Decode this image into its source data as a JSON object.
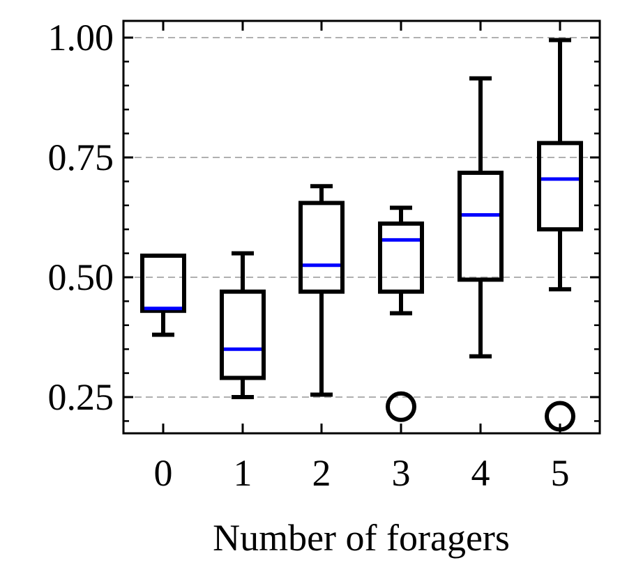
{
  "chart_data": {
    "type": "box",
    "title": "",
    "xlabel": "Number of foragers",
    "ylabel": "",
    "categories": [
      "0",
      "1",
      "2",
      "3",
      "4",
      "5"
    ],
    "ylim": [
      0.175,
      1.04
    ],
    "yticks": [
      0.25,
      0.5,
      0.75,
      1.0
    ],
    "ytick_labels": [
      "0.25",
      "0.50",
      "0.75",
      "1.00"
    ],
    "grid": "y-dashed",
    "boxes": [
      {
        "whisker_low": 0.38,
        "q1": 0.43,
        "median": 0.435,
        "q3": 0.545,
        "whisker_high": 0.545,
        "outliers": []
      },
      {
        "whisker_low": 0.25,
        "q1": 0.29,
        "median": 0.35,
        "q3": 0.47,
        "whisker_high": 0.55,
        "outliers": []
      },
      {
        "whisker_low": 0.255,
        "q1": 0.47,
        "median": 0.525,
        "q3": 0.655,
        "whisker_high": 0.69,
        "outliers": []
      },
      {
        "whisker_low": 0.425,
        "q1": 0.47,
        "median": 0.578,
        "q3": 0.612,
        "whisker_high": 0.645,
        "outliers": [
          0.23
        ]
      },
      {
        "whisker_low": 0.335,
        "q1": 0.495,
        "median": 0.63,
        "q3": 0.718,
        "whisker_high": 0.915,
        "outliers": []
      },
      {
        "whisker_low": 0.475,
        "q1": 0.6,
        "median": 0.705,
        "q3": 0.78,
        "whisker_high": 0.995,
        "outliers": [
          0.21
        ]
      }
    ],
    "colors": {
      "box": "#000000",
      "median": "#0000ff",
      "grid": "#b0b0b0"
    }
  }
}
